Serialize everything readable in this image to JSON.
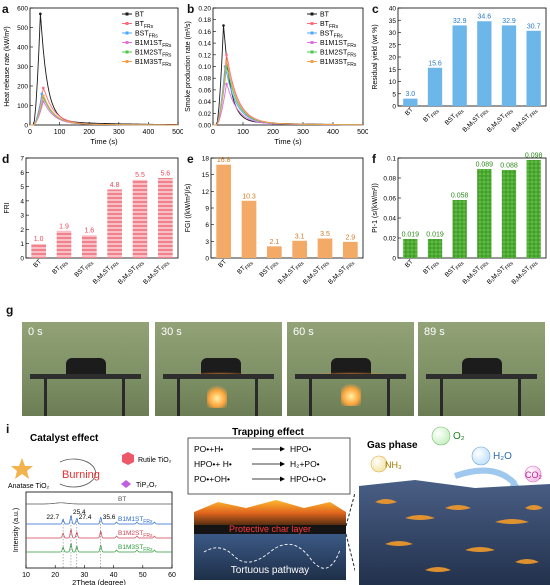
{
  "panel_letters": {
    "a": "a",
    "b": "b",
    "c": "c",
    "d": "d",
    "e": "e",
    "f": "f",
    "g": "g",
    "i": "i"
  },
  "colors": {
    "BT": "#1a1a1a",
    "BT_FRs": "#ff6a80",
    "BST_FRs": "#4da6ff",
    "B1M1ST_FRs": "#e070e0",
    "B1M2ST_FRs": "#52c44a",
    "B1M3ST_FRs": "#f2a04e",
    "blue_bar": "#6cb6ea",
    "red_bar": "#f0828c",
    "orange_bar": "#f2aa66",
    "green_bar": "#5cbf3c"
  },
  "panel_a": {
    "ylabel": "Heat release rate (kW/m²)",
    "xlabel": "Time (s)",
    "legend": [
      "BT",
      "BT",
      "BST",
      "B1M1ST",
      "B1M2ST",
      "B1M3ST"
    ],
    "legend_sub": [
      "",
      "FRs",
      "FRs",
      "FRs",
      "FRs",
      "FRs"
    ]
  },
  "panel_b": {
    "ylabel": "Smoke production rate (m²/s)",
    "xlabel": "Time (s)",
    "legend": [
      "BT",
      "BT",
      "BST",
      "B1M1ST",
      "B1M2ST",
      "B1M3ST"
    ],
    "legend_sub": [
      "",
      "FRs",
      "FRs",
      "FRs",
      "FRs",
      "FRs"
    ]
  },
  "panel_c": {
    "ylabel": "Residual yield (wt %)"
  },
  "panel_d": {
    "ylabel": "FRI"
  },
  "panel_e": {
    "ylabel": "FGI ((kW/m²)/s)"
  },
  "panel_f": {
    "ylabel": "PI-1 (s/(kW/m²))"
  },
  "panel_g": {
    "times": [
      "0 s",
      "30 s",
      "60 s",
      "89 s"
    ]
  },
  "panel_i": {
    "catalyst_title": "Catalyst effect",
    "burning": "Burning",
    "rutile": "Rutile TiO₂",
    "anatase": "Anatase TiO₂",
    "tip": "TiP₂O₇",
    "xrd_ylabel": "Intensity (a.u.)",
    "xrd_xlabel": "2Theta (degree)",
    "xrd_curve_labels": [
      "BT",
      "B1M1ST",
      "B1M2ST",
      "B1M3ST"
    ],
    "xrd_curve_subs": [
      "",
      "FRs",
      "FRs",
      "FRs"
    ],
    "peaks": [
      "25.4",
      "22.7",
      "27.4",
      "35.6"
    ],
    "trapping_title": "Trapping effect",
    "reactions": [
      [
        "PO•+H•",
        "HPO•"
      ],
      [
        "HPO•+ H•",
        "H₂+PO•"
      ],
      [
        "PO•+OH•",
        "HPO•+O•"
      ]
    ],
    "char_label": "Protective char layer",
    "tortuous": "Tortuous pathway",
    "gas_phase": "Gas phase",
    "o2": "O₂",
    "h2o": "H₂O",
    "nh3": "NH₃",
    "co2": "CO₂"
  },
  "chart_data": [
    {
      "type": "line",
      "panel": "a",
      "xlabel": "Time (s)",
      "ylabel": "Heat release rate (kW/m²)",
      "xlim": [
        0,
        500
      ],
      "ylim": [
        0,
        600
      ],
      "xticks": [
        0,
        100,
        200,
        300,
        400,
        500
      ],
      "yticks": [
        0,
        100,
        200,
        300,
        400,
        500,
        600
      ],
      "series": [
        {
          "name": "BT",
          "peak": [
            35,
            570
          ]
        },
        {
          "name": "BT FRs",
          "peak": [
            45,
            190
          ]
        },
        {
          "name": "BST FRs",
          "peak": [
            40,
            160
          ]
        },
        {
          "name": "B1M1ST FRs",
          "peak": [
            45,
            120
          ]
        },
        {
          "name": "B1M2ST FRs",
          "peak": [
            45,
            140
          ]
        },
        {
          "name": "B1M3ST FRs",
          "peak": [
            45,
            150
          ]
        }
      ]
    },
    {
      "type": "line",
      "panel": "b",
      "xlabel": "Time (s)",
      "ylabel": "Smoke production rate (m²/s)",
      "xlim": [
        0,
        500
      ],
      "ylim": [
        0,
        0.2
      ],
      "xticks": [
        0,
        100,
        200,
        300,
        400,
        500
      ],
      "yticks": [
        0,
        0.02,
        0.04,
        0.06,
        0.08,
        0.1,
        0.12,
        0.14,
        0.16,
        0.18,
        0.2
      ],
      "series": [
        {
          "name": "BT",
          "peak": [
            35,
            0.17
          ]
        },
        {
          "name": "BT FRs",
          "peak": [
            45,
            0.12
          ]
        },
        {
          "name": "BST FRs",
          "peak": [
            40,
            0.1
          ]
        },
        {
          "name": "B1M1ST FRs",
          "peak": [
            45,
            0.07
          ]
        },
        {
          "name": "B1M2ST FRs",
          "peak": [
            45,
            0.1
          ]
        },
        {
          "name": "B1M3ST FRs",
          "peak": [
            45,
            0.11
          ]
        }
      ]
    },
    {
      "type": "bar",
      "panel": "c",
      "ylabel": "Residual yield (wt %)",
      "ylim": [
        0,
        40
      ],
      "yticks": [
        0,
        5,
        10,
        15,
        20,
        25,
        30,
        35,
        40
      ],
      "categories": [
        "BT",
        "BT FRs",
        "BST FRs",
        "B1M1ST FRs",
        "B1M2ST FRs",
        "B1M3ST FRs"
      ],
      "values": [
        3.0,
        15.6,
        32.9,
        34.6,
        32.9,
        30.7
      ],
      "labels": [
        "3.0",
        "15.6",
        "32.9",
        "34.6",
        "32.9",
        "30.7"
      ]
    },
    {
      "type": "bar",
      "panel": "d",
      "ylabel": "FRI",
      "ylim": [
        0,
        7
      ],
      "yticks": [
        0,
        1,
        2,
        3,
        4,
        5,
        6,
        7
      ],
      "categories": [
        "BT",
        "BT FRs",
        "BST FRs",
        "B1M1ST FRs",
        "B1M2ST FRs",
        "B1M3ST FRs"
      ],
      "values": [
        1.0,
        1.9,
        1.6,
        4.8,
        5.5,
        5.6
      ],
      "labels": [
        "1.0",
        "1.9",
        "1.6",
        "4.8",
        "5.5",
        "5.6"
      ]
    },
    {
      "type": "bar",
      "panel": "e",
      "ylabel": "FGI ((kW/m²)/s)",
      "ylim": [
        0,
        18
      ],
      "yticks": [
        0,
        3,
        6,
        9,
        12,
        15,
        18
      ],
      "categories": [
        "BT",
        "BT FRs",
        "BST FRs",
        "B1M1ST FRs",
        "B1M2ST FRs",
        "B1M3ST FRs"
      ],
      "values": [
        16.8,
        10.3,
        2.1,
        3.1,
        3.5,
        2.9
      ],
      "labels": [
        "16.8",
        "10.3",
        "2.1",
        "3.1",
        "3.5",
        "2.9"
      ]
    },
    {
      "type": "bar",
      "panel": "f",
      "ylabel": "PI-1 (s/(kW/m²))",
      "ylim": [
        0,
        0.1
      ],
      "yticks": [
        0,
        0.02,
        0.04,
        0.06,
        0.08,
        0.1
      ],
      "categories": [
        "BT",
        "BT FRs",
        "BST FRs",
        "B1M1ST FRs",
        "B1M2ST FRs",
        "B1M3ST FRs"
      ],
      "values": [
        0.019,
        0.019,
        0.058,
        0.089,
        0.088,
        0.098
      ],
      "labels": [
        "0.019",
        "0.019",
        "0.058",
        "0.089",
        "0.088",
        "0.098"
      ]
    },
    {
      "type": "line",
      "panel": "i",
      "xlabel": "2Theta (degree)",
      "ylabel": "Intensity (a.u.)",
      "xlim": [
        10,
        60
      ],
      "xticks": [
        10,
        20,
        30,
        40,
        50,
        60
      ],
      "series": [
        {
          "name": "BT"
        },
        {
          "name": "B1M1ST FRs"
        },
        {
          "name": "B1M2ST FRs"
        },
        {
          "name": "B1M3ST FRs"
        }
      ]
    }
  ]
}
